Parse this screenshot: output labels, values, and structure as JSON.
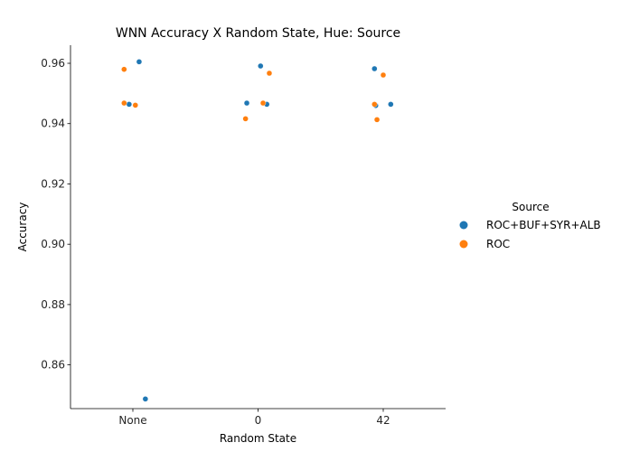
{
  "chart_data": {
    "type": "scatter",
    "title": "WNN Accuracy X Random State, Hue: Source",
    "xlabel": "Random State",
    "ylabel": "Accuracy",
    "categories": [
      "None",
      "0",
      "42"
    ],
    "ylim": [
      0.8455,
      0.966
    ],
    "yticks": [
      "0.86",
      "0.88",
      "0.90",
      "0.92",
      "0.94",
      "0.96"
    ],
    "grid": false,
    "legend_title": "Source",
    "legend_position": "right",
    "series": [
      {
        "name": "ROC+BUF+SYR+ALB",
        "color": "#1f77b4",
        "points": [
          {
            "category": "None",
            "jitter": -0.03,
            "y": 0.9464
          },
          {
            "category": "None",
            "jitter": 0.05,
            "y": 0.9605
          },
          {
            "category": "None",
            "jitter": 0.1,
            "y": 0.8487
          },
          {
            "category": "0",
            "jitter": -0.09,
            "y": 0.9468
          },
          {
            "category": "0",
            "jitter": 0.02,
            "y": 0.9591
          },
          {
            "category": "0",
            "jitter": 0.07,
            "y": 0.9464
          },
          {
            "category": "42",
            "jitter": -0.07,
            "y": 0.9582
          },
          {
            "category": "42",
            "jitter": -0.06,
            "y": 0.946
          },
          {
            "category": "42",
            "jitter": 0.06,
            "y": 0.9464
          }
        ]
      },
      {
        "name": "ROC",
        "color": "#ff7f0e",
        "points": [
          {
            "category": "None",
            "jitter": -0.07,
            "y": 0.958
          },
          {
            "category": "None",
            "jitter": -0.07,
            "y": 0.9468
          },
          {
            "category": "None",
            "jitter": 0.02,
            "y": 0.9461
          },
          {
            "category": "0",
            "jitter": -0.1,
            "y": 0.9416
          },
          {
            "category": "0",
            "jitter": 0.04,
            "y": 0.9468
          },
          {
            "category": "0",
            "jitter": 0.09,
            "y": 0.9567
          },
          {
            "category": "42",
            "jitter": -0.07,
            "y": 0.9464
          },
          {
            "category": "42",
            "jitter": -0.05,
            "y": 0.9413
          },
          {
            "category": "42",
            "jitter": 0.0,
            "y": 0.9561
          }
        ]
      }
    ]
  }
}
